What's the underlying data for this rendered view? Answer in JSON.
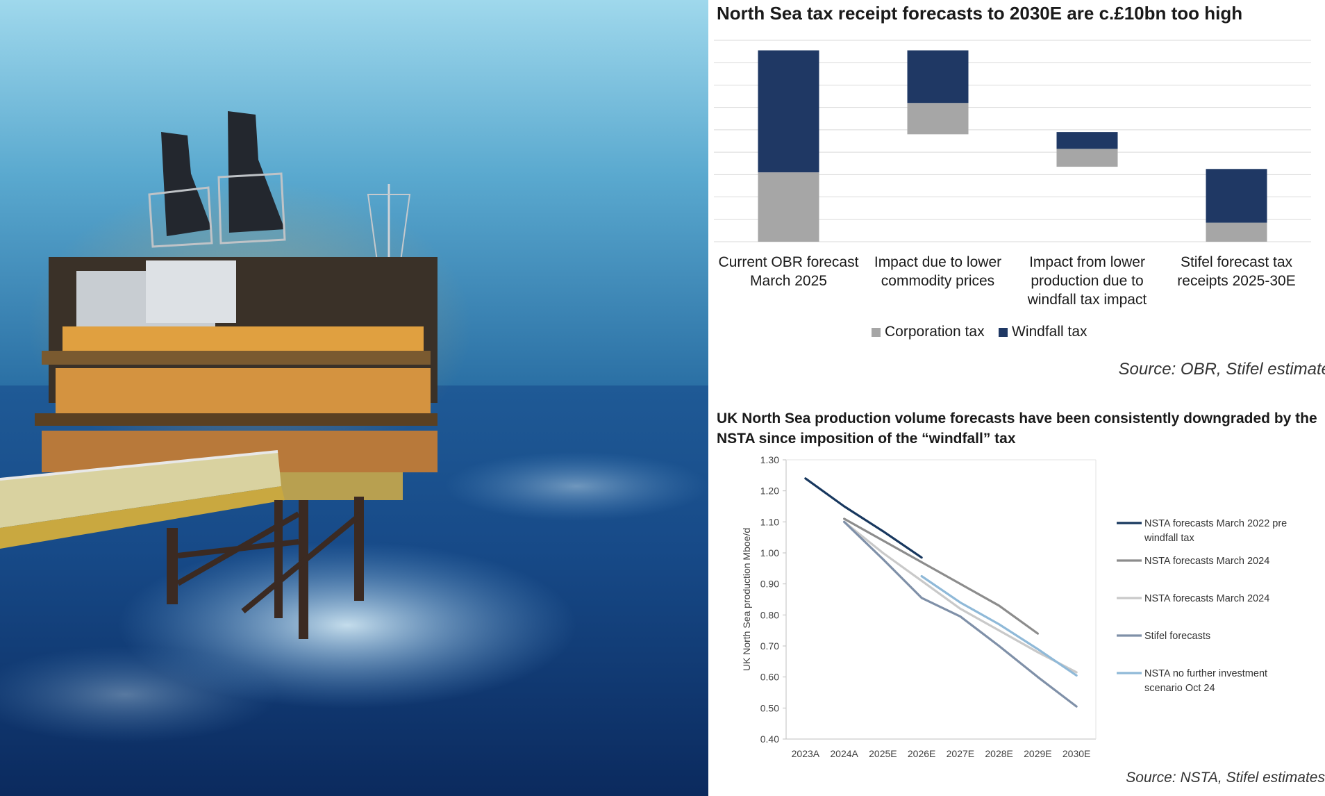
{
  "chart_data": [
    {
      "type": "bar",
      "subtype": "waterfall",
      "title": "North Sea tax receipt forecasts to 2030E are c.£10bn too high",
      "categories": [
        [
          "Current OBR forecast",
          "March 2025"
        ],
        [
          "Impact due to lower",
          "commodity prices"
        ],
        [
          "Impact from lower",
          "production due to",
          "windfall tax impact"
        ],
        [
          "Stifel forecast tax",
          "receipts 2025-30E"
        ]
      ],
      "series": [
        {
          "name": "Corporation tax",
          "color": "#a6a6a6"
        },
        {
          "name": "Windfall tax",
          "color": "#1f3864"
        }
      ],
      "bars": [
        {
          "base": 0,
          "segments": [
            {
              "series": "Corporation tax",
              "value": 31
            },
            {
              "series": "Windfall tax",
              "value": 54.5
            }
          ]
        },
        {
          "base": 48,
          "segments": [
            {
              "series": "Corporation tax",
              "value": 14
            },
            {
              "series": "Windfall tax",
              "value": 23.5
            }
          ]
        },
        {
          "base": 33.5,
          "segments": [
            {
              "series": "Corporation tax",
              "value": 8
            },
            {
              "series": "Windfall tax",
              "value": 7.5
            }
          ]
        },
        {
          "base": 0,
          "segments": [
            {
              "series": "Corporation tax",
              "value": 8.5
            },
            {
              "series": "Windfall tax",
              "value": 24
            }
          ]
        }
      ],
      "ylim": [
        0,
        90
      ],
      "grid": true,
      "legend": "bottom",
      "source": "Source: OBR, Stifel estimates"
    },
    {
      "type": "line",
      "title": "UK North Sea production volume forecasts have been consistently downgraded by the NSTA since imposition of the “windfall” tax",
      "x": [
        "2023A",
        "2024A",
        "2025E",
        "2026E",
        "2027E",
        "2028E",
        "2029E",
        "2030E"
      ],
      "ylabel": "UK North Sea production  Mboe/d",
      "ylim": [
        0.4,
        1.3
      ],
      "yticks": [
        "0.40",
        "0.50",
        "0.60",
        "0.70",
        "0.80",
        "0.90",
        "1.00",
        "1.10",
        "1.20",
        "1.30"
      ],
      "series": [
        {
          "name": "NSTA forecasts March 2022 pre windfall tax",
          "legend_lines": [
            "NSTA forecasts March 2022 pre",
            "windfall tax"
          ],
          "color": "#17375e",
          "values": [
            1.24,
            1.15,
            1.07,
            0.985,
            null,
            null,
            null,
            null
          ]
        },
        {
          "name": "NSTA forecasts March 2024",
          "legend_lines": [
            "NSTA forecasts March 2024"
          ],
          "color": "#8c8c8c",
          "values": [
            null,
            1.11,
            1.04,
            0.97,
            0.9,
            0.83,
            0.74,
            null
          ]
        },
        {
          "name": "NSTA forecasts March  2024",
          "legend_lines": [
            "NSTA forecasts March  2024"
          ],
          "color": "#c9c9c9",
          "values": [
            null,
            1.1,
            1.0,
            0.91,
            0.82,
            0.75,
            0.68,
            0.615
          ]
        },
        {
          "name": "Stifel forecasts",
          "legend_lines": [
            "Stifel forecasts"
          ],
          "color": "#7f90a8",
          "values": [
            null,
            1.1,
            0.98,
            0.855,
            0.795,
            0.7,
            0.6,
            0.505
          ]
        },
        {
          "name": "NSTA no further investment scenario Oct 24",
          "legend_lines": [
            "NSTA no further investment",
            "scenario Oct 24"
          ],
          "color": "#8fb9d8",
          "values": [
            null,
            null,
            null,
            0.925,
            0.84,
            0.77,
            0.69,
            0.605
          ]
        }
      ],
      "grid": false,
      "legend": "right",
      "source": "Source: NSTA, Stifel estimates"
    }
  ]
}
